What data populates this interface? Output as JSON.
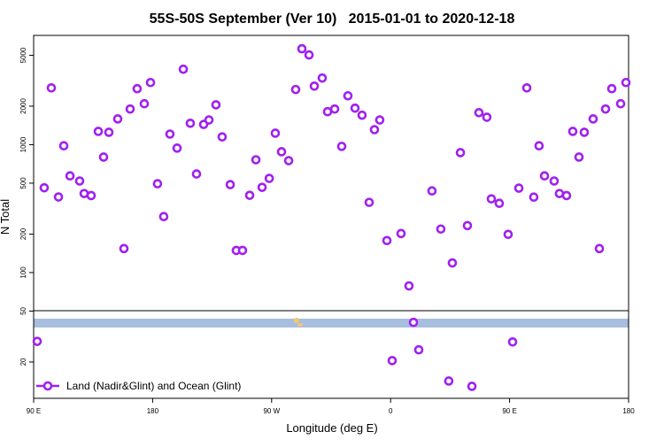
{
  "chart_data": {
    "type": "scatter",
    "title": "55S-50S September (Ver 10)   2015-01-01 to 2020-12-18",
    "x_label": "Longitude (deg E)",
    "y_label": "N Total",
    "log_y": true,
    "legend": "bottom-left",
    "xlim": [
      90,
      540
    ],
    "xticks": [
      {
        "value": 90,
        "label": "90 E"
      },
      {
        "value": 180,
        "label": "180"
      },
      {
        "value": 270,
        "label": "90 W"
      },
      {
        "value": 360,
        "label": "0"
      },
      {
        "value": 450,
        "label": "90 E"
      },
      {
        "value": 540,
        "label": "180"
      }
    ],
    "ylim": [
      10.4,
      7150
    ],
    "yticks": [
      20,
      50,
      100,
      200,
      500,
      1000,
      2000,
      5000
    ],
    "series": [
      {
        "name": "Land (Nadir&Glint) and Ocean (Glint)",
        "color": "#a020f0",
        "x": [
          92.7,
          98.0,
          103.4,
          108.8,
          112.8,
          117.5,
          124.8,
          128.2,
          133.5,
          138.9,
          142.9,
          146.9,
          153.6,
          158.3,
          163.0,
          168.3,
          173.7,
          178.4,
          183.7,
          188.4,
          193.1,
          198.5,
          203.2,
          208.5,
          213.2,
          218.6,
          222.6,
          227.9,
          232.6,
          238.7,
          243.3,
          248.0,
          253.4,
          258.1,
          262.8,
          268.2,
          272.8,
          277.5,
          282.9,
          288.2,
          292.9,
          298.3,
          302.3,
          308.3,
          312.3,
          317.7,
          323.0,
          327.7,
          333.1,
          338.4,
          343.8,
          347.8,
          351.8,
          357.2,
          361.2,
          367.9,
          373.9,
          377.3,
          381.3,
          391.3,
          398.0,
          404.0,
          406.7,
          412.8,
          418.1,
          421.5,
          426.8,
          432.8,
          436.2,
          442.2,
          448.9,
          452.3,
          457.0,
          463.0,
          468.3,
          472.3,
          476.4,
          483.7,
          487.7,
          493.1,
          497.8,
          502.5,
          506.5,
          513.2,
          517.9,
          522.6,
          527.3,
          534.0,
          538.0
        ],
        "values": [
          29,
          460,
          2780,
          390,
          980,
          570,
          520,
          415,
          400,
          1270,
          800,
          1250,
          1590,
          154,
          1900,
          2740,
          2090,
          3060,
          495,
          274,
          1210,
          940,
          3890,
          1470,
          590,
          1440,
          1560,
          2050,
          1150,
          487,
          149,
          149,
          402,
          762,
          464,
          545,
          1230,
          880,
          750,
          2700,
          5620,
          5030,
          2870,
          3320,
          1810,
          1900,
          970,
          2410,
          1930,
          1700,
          354,
          1310,
          1560,
          178,
          20.5,
          202,
          78.7,
          40.8,
          24.9,
          435,
          219,
          14.2,
          119,
          866,
          233,
          12.9,
          1780,
          1640,
          377,
          348,
          199,
          28.7,
          457,
          2780,
          389,
          980,
          570,
          520,
          415,
          400,
          1270,
          800,
          1250,
          1590,
          154,
          1900,
          2740,
          2090,
          3060
        ]
      }
    ]
  }
}
